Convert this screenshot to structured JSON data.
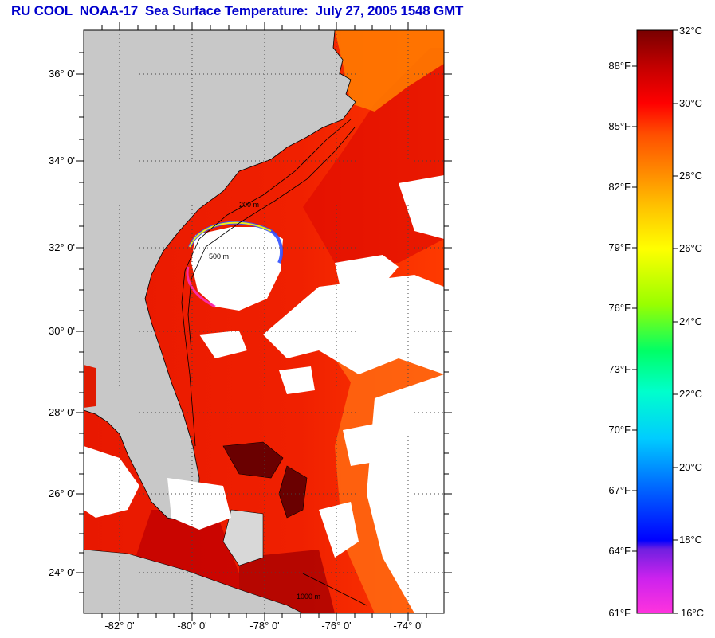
{
  "title": "RU COOL  NOAA-17  Sea Surface Temperature:  July 27, 2005 1548 GMT",
  "map": {
    "lon_range": [
      -83,
      -73
    ],
    "lat_range": [
      23,
      37
    ],
    "lat_ticks": [
      "36° 0'",
      "34° 0'",
      "32° 0'",
      "30° 0'",
      "28° 0'",
      "26° 0'",
      "24° 0'"
    ],
    "lon_ticks": [
      "-82° 0'",
      "-80° 0'",
      "-78° 0'",
      "-76° 0'",
      "-74° 0'"
    ],
    "grid": "dotted",
    "land_color": "#c8c8c8",
    "cloud_color": "#ffffff",
    "isobath_labels": [
      "200 m",
      "500 m",
      "1000 m"
    ]
  },
  "colorbar": {
    "min_c": 16,
    "max_c": 32,
    "celsius_labels": [
      "32°C",
      "30°C",
      "28°C",
      "26°C",
      "24°C",
      "22°C",
      "20°C",
      "18°C",
      "16°C"
    ],
    "fahrenheit_labels": [
      "88°F",
      "85°F",
      "82°F",
      "79°F",
      "76°F",
      "73°F",
      "70°F",
      "67°F",
      "64°F",
      "61°F"
    ],
    "colors": [
      "#ff33dd",
      "#a020f0",
      "#0000ff",
      "#0088ff",
      "#00ffff",
      "#00ff66",
      "#aaff00",
      "#ffff00",
      "#ffb000",
      "#ff6600",
      "#ff0000",
      "#d00000",
      "#800000"
    ]
  }
}
